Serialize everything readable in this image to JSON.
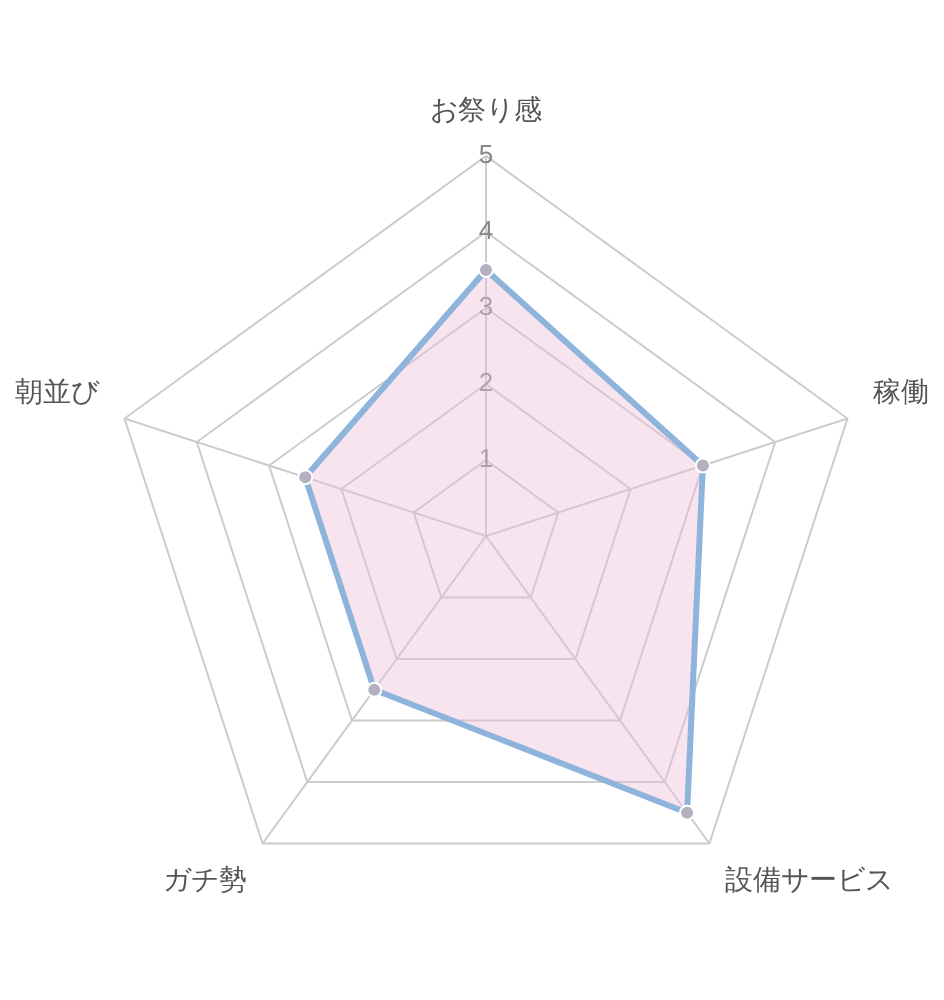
{
  "chart_data": {
    "type": "radar",
    "categories": [
      "お祭り感",
      "稼働",
      "設備サービス",
      "ガチ勢",
      "朝並び"
    ],
    "series": [
      {
        "color": "#8fb4dc",
        "values": [
          3.5,
          3,
          4.5,
          2.5,
          2.5
        ]
      }
    ],
    "ylim": [
      0,
      5
    ],
    "yticks": [
      1,
      2,
      3,
      4,
      5
    ],
    "grid": true,
    "legend": false,
    "marker": "circle"
  }
}
